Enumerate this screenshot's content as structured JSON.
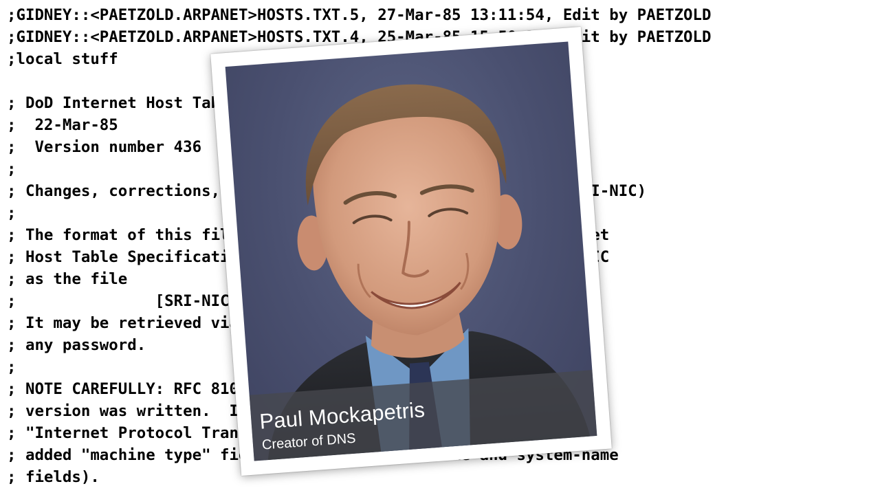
{
  "hosts_file": {
    "lines": [
      ";GIDNEY::<PAETZOLD.ARPANET>HOSTS.TXT.5, 27-Mar-85 13:11:54, Edit by PAETZOLD",
      ";GIDNEY::<PAETZOLD.ARPANET>HOSTS.TXT.4, 25-Mar-85 15:50:38, Edit by PAETZOLD",
      ";local stuff",
      "",
      "; DoD Internet Host Table",
      ";  22-Mar-85",
      ";  Version number 436",
      ";",
      "; Changes, corrections, comments or questions to (HOSTMASTER@SRI-NIC)",
      ";",
      "; The format of this file is documented in RFC 810, \"DoD Internet",
      "; Host Table Specification\", which is available online at SRI-NIC",
      "; as the file",
      ";               [SRI-NIC]<NETINFO>HOST-TABLE-SPEC.TXT",
      "; It may be retrieved via FTP from SRI-NIC without needing",
      "; any password.",
      ";",
      "; NOTE CAREFULLY: RFC 810 has been updated since the original",
      "; version was written.  In particular, it now includes the",
      "; \"Internet Protocol Transition Workbook\" format change (the",
      "; added \"machine type\" field between the host-name and system-name",
      "; fields)."
    ]
  },
  "photo_card": {
    "name": "Paul Mockapetris",
    "role": "Creator of DNS",
    "icon": "portrait-photo"
  }
}
